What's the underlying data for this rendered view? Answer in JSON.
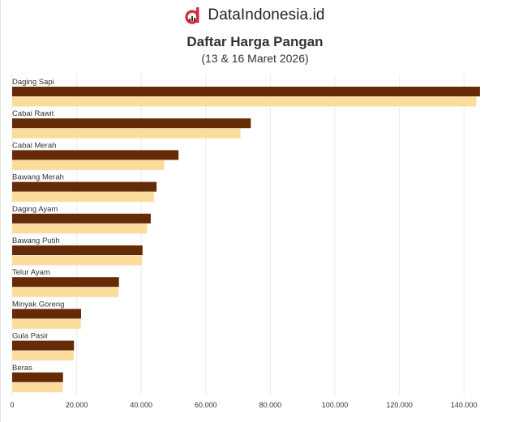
{
  "header": {
    "brand": "DataIndonesia.id",
    "title": "Daftar Harga Pangan",
    "subtitle": "(13 & 16 Maret 2026)"
  },
  "colors": {
    "series_dark": "#652b07",
    "series_light": "#fbdc9c",
    "brand_red": "#d7263d"
  },
  "chart_data": {
    "type": "bar",
    "orientation": "horizontal",
    "title": "Daftar Harga Pangan",
    "subtitle": "(13 & 16 Maret 2026)",
    "categories": [
      "Daging Sapi",
      "Cabai Rawit",
      "Cabai Merah",
      "Bawang Merah",
      "Daging Ayam",
      "Bawang Putih",
      "Telur Ayam",
      "Minyak Goreng",
      "Gula Pasir",
      "Beras"
    ],
    "series": [
      {
        "name": "13 Maret 2026",
        "values": [
          144950,
          73950,
          51550,
          44750,
          42950,
          40400,
          33100,
          21350,
          19150,
          15750
        ]
      },
      {
        "name": "16 Maret 2026",
        "values": [
          143850,
          70750,
          47150,
          43950,
          41800,
          40250,
          32950,
          21300,
          19050,
          15650
        ]
      }
    ],
    "xlim": [
      0,
      150000
    ],
    "xticks": [
      0,
      20000,
      40000,
      60000,
      80000,
      100000,
      120000,
      140000
    ],
    "xtick_labels": [
      "0",
      "20.000",
      "40.000",
      "60.000",
      "80.000",
      "100.000",
      "120.000",
      "140.000"
    ],
    "grid": true,
    "legend": "none"
  }
}
